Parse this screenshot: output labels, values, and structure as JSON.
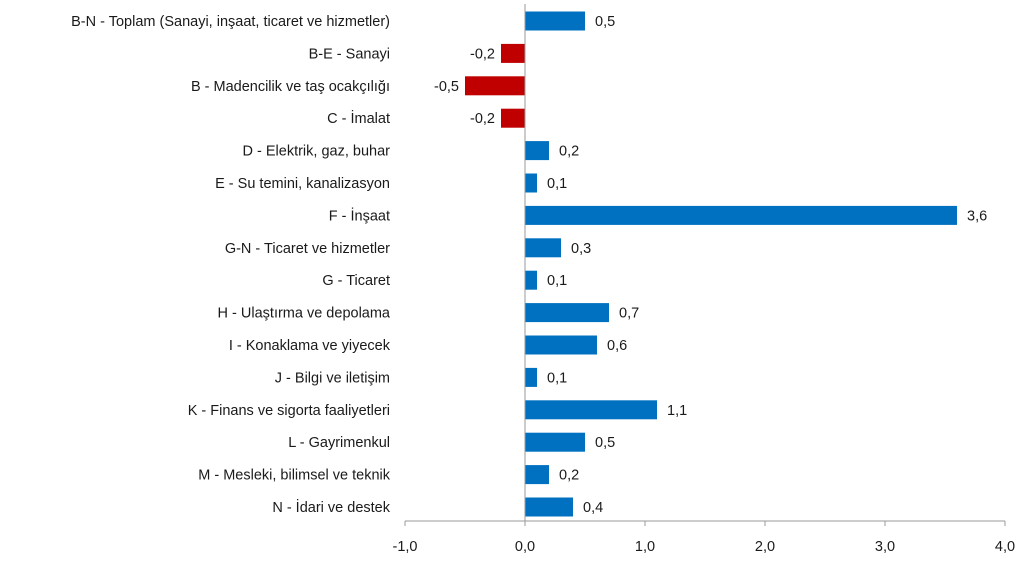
{
  "chart_data": {
    "type": "bar",
    "orientation": "horizontal",
    "categories": [
      "B-N - Toplam (Sanayi, inşaat, ticaret ve hizmetler)",
      "B-E - Sanayi",
      "B - Madencilik ve taş ocakçılığı",
      "C - İmalat",
      "D - Elektrik, gaz, buhar",
      "E - Su temini, kanalizasyon",
      "F - İnşaat",
      "G-N - Ticaret ve hizmetler",
      "G - Ticaret",
      "H - Ulaştırma ve depolama",
      "I - Konaklama ve yiyecek",
      "J - Bilgi ve iletişim",
      "K - Finans ve sigorta faaliyetleri",
      "L - Gayrimenkul",
      "M - Mesleki, bilimsel ve teknik",
      "N - İdari ve destek"
    ],
    "values": [
      0.5,
      -0.2,
      -0.5,
      -0.2,
      0.2,
      0.1,
      3.6,
      0.3,
      0.1,
      0.7,
      0.6,
      0.1,
      1.1,
      0.5,
      0.2,
      0.4
    ],
    "value_labels": [
      "0,5",
      "-0,2",
      "-0,5",
      "-0,2",
      "0,2",
      "0,1",
      "3,6",
      "0,3",
      "0,1",
      "0,7",
      "0,6",
      "0,1",
      "1,1",
      "0,5",
      "0,2",
      "0,4"
    ],
    "xlim": [
      -1.0,
      4.0
    ],
    "xticks": [
      -1.0,
      0.0,
      1.0,
      2.0,
      3.0,
      4.0
    ],
    "xtick_labels": [
      "-1,0",
      "0,0",
      "1,0",
      "2,0",
      "3,0",
      "4,0"
    ],
    "title": "",
    "xlabel": "",
    "ylabel": "",
    "grid": false,
    "legend": "none",
    "colors": {
      "positive": "#0070C0",
      "negative": "#C00000",
      "axis": "#9a9a9a",
      "text": "#1a1a1a"
    }
  }
}
